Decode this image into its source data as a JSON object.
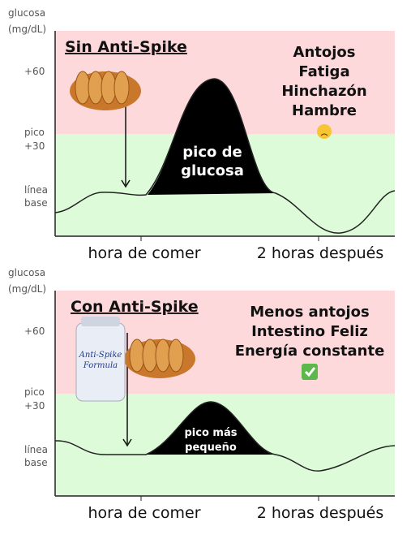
{
  "panels": [
    {
      "axis_label": [
        "glucosa",
        "(mg/dL)"
      ],
      "levels": [
        "+60",
        [
          "pico",
          "+30"
        ],
        [
          "línea",
          "base"
        ]
      ],
      "title": "Sin Anti-Spike",
      "notes": [
        "Antojos",
        "Fatiga",
        "Hinchazón",
        "Hambre"
      ],
      "peak_label": [
        "pico de",
        "glucosa"
      ],
      "x_labels": [
        "hora de comer",
        "2 horas después"
      ]
    },
    {
      "axis_label": [
        "glucosa",
        "(mg/dL)"
      ],
      "levels": [
        "+60",
        [
          "pico",
          "+30"
        ],
        [
          "línea",
          "base"
        ]
      ],
      "title": "Con Anti-Spike",
      "notes": [
        "Menos antojos",
        "Intestino Feliz",
        "Energía constante"
      ],
      "peak_label": [
        "pico más",
        "pequeño"
      ],
      "x_labels": [
        "hora de comer",
        "2 horas después"
      ],
      "bottle_label": [
        "Anti-Spike",
        "Formula"
      ]
    }
  ]
}
